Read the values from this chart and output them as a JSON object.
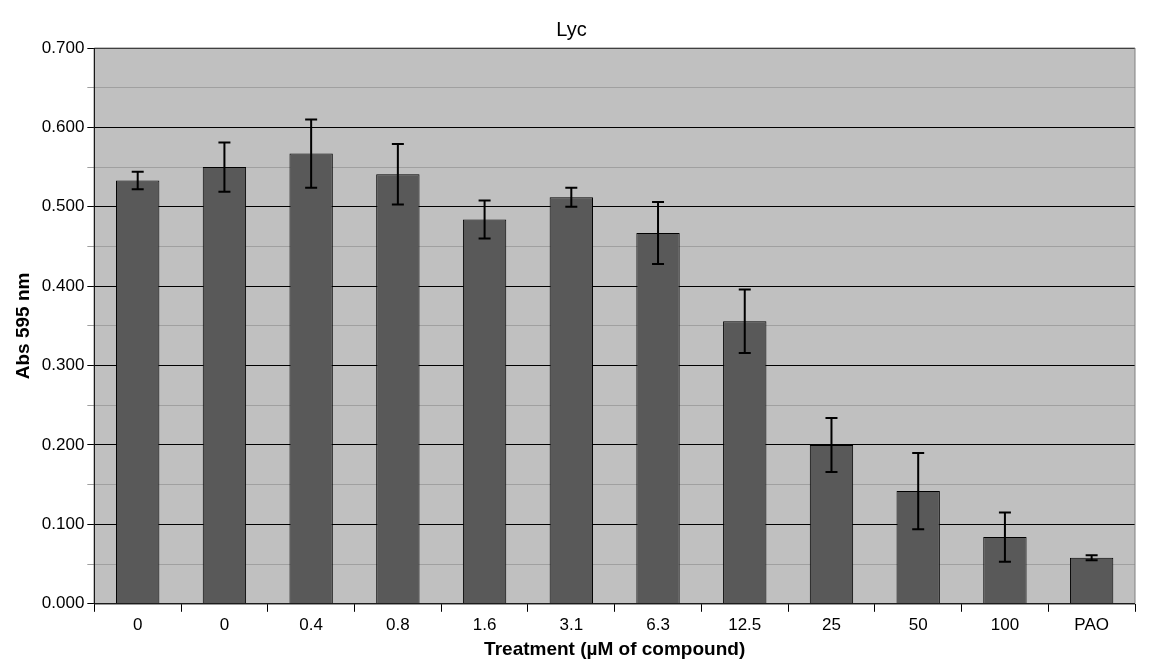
{
  "chart_data": {
    "type": "bar",
    "title": "Lyc",
    "xlabel": "Treatment (µM of compound)",
    "ylabel": "Abs 595 nm",
    "categories": [
      "0",
      "0",
      "0.4",
      "0.8",
      "1.6",
      "3.1",
      "6.3",
      "12.5",
      "25",
      "50",
      "100",
      "PAO"
    ],
    "values": [
      0.533,
      0.55,
      0.567,
      0.541,
      0.484,
      0.512,
      0.467,
      0.356,
      0.2,
      0.142,
      0.084,
      0.058
    ],
    "errors": [
      0.011,
      0.031,
      0.043,
      0.038,
      0.024,
      0.012,
      0.039,
      0.04,
      0.034,
      0.048,
      0.031,
      0.003
    ],
    "color": "#595959",
    "ylim": [
      0,
      0.7
    ],
    "yticks": [
      {
        "value": 0,
        "label": "0.000"
      },
      {
        "value": 0.05,
        "label": null
      },
      {
        "value": 0.1,
        "label": "0.100"
      },
      {
        "value": 0.15,
        "label": null
      },
      {
        "value": 0.2,
        "label": "0.200"
      },
      {
        "value": 0.25,
        "label": null
      },
      {
        "value": 0.3,
        "label": "0.300"
      },
      {
        "value": 0.35,
        "label": null
      },
      {
        "value": 0.4,
        "label": "0.400"
      },
      {
        "value": 0.45,
        "label": null
      },
      {
        "value": 0.5,
        "label": "0.500"
      },
      {
        "value": 0.55,
        "label": null
      },
      {
        "value": 0.6,
        "label": "0.600"
      },
      {
        "value": 0.65,
        "label": null
      },
      {
        "value": 0.7,
        "label": "0.700"
      }
    ],
    "grid": "y"
  }
}
